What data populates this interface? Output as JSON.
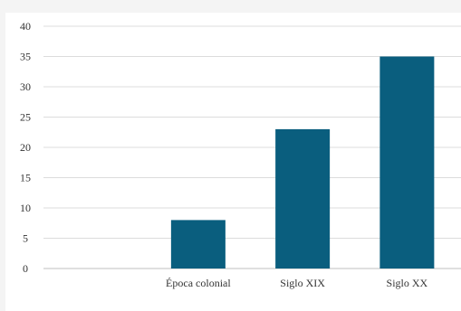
{
  "chart_data": {
    "type": "bar",
    "categories": [
      "",
      "Época colonial",
      "Siglo XIX",
      "Siglo XX"
    ],
    "values": [
      0,
      8,
      23,
      35
    ],
    "title": "",
    "xlabel": "",
    "ylabel": "",
    "ylim": [
      0,
      40
    ],
    "yticks": [
      0,
      5,
      10,
      15,
      20,
      25,
      30,
      35,
      40
    ],
    "grid": true,
    "legend": "none",
    "bar_color": "#0a5e7e"
  }
}
